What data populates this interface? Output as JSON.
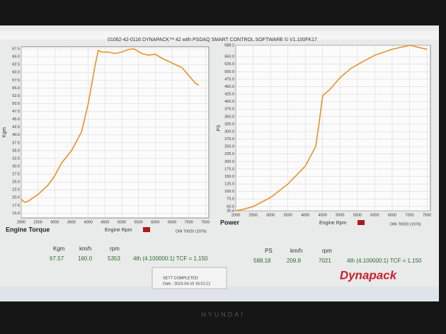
{
  "header": {
    "title": "01062-42-0116 DYNAPACK™ 42 with PSDAQ SMART CONTROL SOFTWARE © V1.100FK17"
  },
  "chart_data": [
    {
      "type": "line",
      "title": "Engine Torque",
      "xlabel": "Engine Rpm",
      "ylabel": "Kgm",
      "standard": "DIN 70020 (1976)",
      "xlim": [
        2000,
        7600
      ],
      "xticks": [
        2000,
        2500,
        3000,
        3500,
        4000,
        4500,
        5000,
        5500,
        6000,
        6500,
        7000,
        7500
      ],
      "ylim": [
        13.5,
        68.2
      ],
      "yticks": [
        {
          "value": 15,
          "label": "15.0"
        },
        17.5,
        {
          "value": 20,
          "label": "20.0"
        },
        22.5,
        {
          "value": 25,
          "label": "25.0"
        },
        27.5,
        {
          "value": 30,
          "label": "30.0"
        },
        32.5,
        {
          "value": 35,
          "label": "35.0"
        },
        37.5,
        {
          "value": 40,
          "label": "40.0"
        },
        42.5,
        {
          "value": 45,
          "label": "45.0"
        },
        47.5,
        {
          "value": 50,
          "label": "50.0"
        },
        52.5,
        {
          "value": 55,
          "label": "55.0"
        },
        57.5,
        {
          "value": 60,
          "label": "60.0"
        },
        62.5,
        {
          "value": 65,
          "label": "65.0"
        },
        67.5
      ],
      "grid": true,
      "series": [
        {
          "name": "Engine Torque",
          "color": "#e8912c",
          "x": [
            2000,
            2100,
            2200,
            2500,
            2800,
            3000,
            3200,
            3500,
            3800,
            4000,
            4200,
            4300,
            4400,
            4600,
            4800,
            5000,
            5200,
            5353,
            5600,
            5800,
            6000,
            6200,
            6500,
            6800,
            7000,
            7200,
            7300
          ],
          "values": [
            19.5,
            18.5,
            18.8,
            21,
            24,
            27,
            31,
            35,
            41,
            50,
            62,
            67,
            66.5,
            66.5,
            66,
            66.5,
            67.3,
            67.57,
            66,
            65.5,
            65.8,
            64.5,
            63,
            61.5,
            59,
            56.5,
            56
          ]
        }
      ]
    },
    {
      "type": "line",
      "title": "Power",
      "xlabel": "Engine Rpm",
      "ylabel": "PS",
      "standard": "DIN 70020 (1976)",
      "xlim": [
        2000,
        7600
      ],
      "xticks": [
        2000,
        2500,
        3000,
        3500,
        4000,
        4500,
        5000,
        5500,
        6000,
        6500,
        7000,
        7500
      ],
      "ylim": [
        35.4,
        588.2
      ],
      "yticks": [
        35.4,
        {
          "value": 50,
          "label": "50.0"
        },
        {
          "value": 75,
          "label": "75.0"
        },
        {
          "value": 100,
          "label": "100.0"
        },
        {
          "value": 125,
          "label": "125.0"
        },
        {
          "value": 150,
          "label": "150.0"
        },
        {
          "value": 175,
          "label": "175.0"
        },
        {
          "value": 200,
          "label": "200.0"
        },
        {
          "value": 225,
          "label": "225.0"
        },
        {
          "value": 250,
          "label": "250.0"
        },
        {
          "value": 275,
          "label": "275.0"
        },
        {
          "value": 300,
          "label": "300.0"
        },
        {
          "value": 325,
          "label": "325.0"
        },
        {
          "value": 350,
          "label": "350.0"
        },
        {
          "value": 375,
          "label": "375.0"
        },
        {
          "value": 400,
          "label": "400.0"
        },
        {
          "value": 425,
          "label": "425.0"
        },
        {
          "value": 450,
          "label": "450.0"
        },
        {
          "value": 475,
          "label": "475.0"
        },
        {
          "value": 500,
          "label": "500.0"
        },
        {
          "value": 525,
          "label": "525.0"
        },
        {
          "value": 550,
          "label": "550.0"
        },
        588.2
      ],
      "grid": true,
      "series": [
        {
          "name": "Power",
          "color": "#e8912c",
          "x": [
            2000,
            2200,
            2500,
            3000,
            3500,
            4000,
            4300,
            4400,
            4500,
            4700,
            5000,
            5300,
            5600,
            6000,
            6500,
            7021,
            7300,
            7500
          ],
          "values": [
            36,
            40,
            50,
            80,
            125,
            185,
            250,
            330,
            420,
            440,
            480,
            510,
            530,
            555,
            575,
            588.18,
            580,
            575
          ]
        }
      ]
    }
  ],
  "readouts": [
    {
      "headers": [
        "Kgm",
        "km/h",
        "rpm"
      ],
      "values": [
        "67.57",
        "160.0",
        "5353"
      ],
      "gear": "4th (4.100000:1) TCF = 1.150"
    },
    {
      "headers": [
        "PS",
        "km/h",
        "rpm"
      ],
      "values": [
        "588.18",
        "209.8",
        "7021"
      ],
      "gear": "4th (4.100000:1) TCF = 1.150"
    }
  ],
  "status": {
    "message": "SETT COMPLETED",
    "date": "Date : 2023-04-10 16:01:12"
  },
  "logo": "Dynapack",
  "monitor": "HYUNDAI"
}
